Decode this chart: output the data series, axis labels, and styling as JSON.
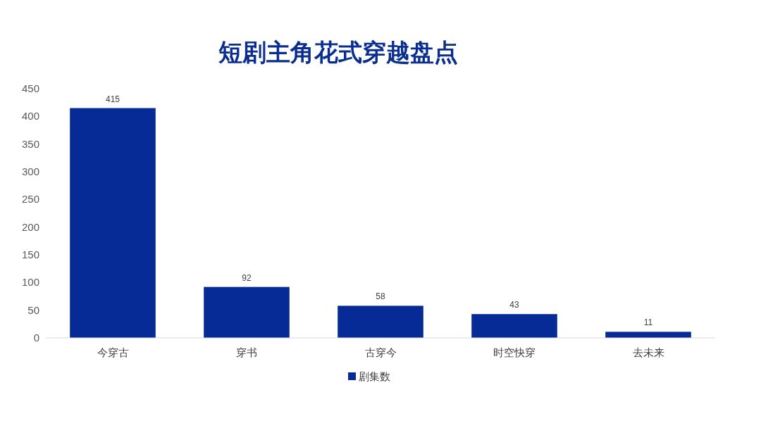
{
  "chart_data": {
    "type": "bar",
    "title": "短剧主角花式穿越盘点",
    "categories": [
      "今穿古",
      "穿书",
      "古穿今",
      "时空快穿",
      "去未来"
    ],
    "series": [
      {
        "name": "剧集数",
        "color": "#062b96",
        "values": [
          415,
          92,
          58,
          43,
          11
        ]
      }
    ],
    "ylim": [
      0,
      450
    ],
    "yticks": [
      0,
      50,
      100,
      150,
      200,
      250,
      300,
      350,
      400,
      450
    ],
    "data_labels": true,
    "legend": "bottom"
  }
}
